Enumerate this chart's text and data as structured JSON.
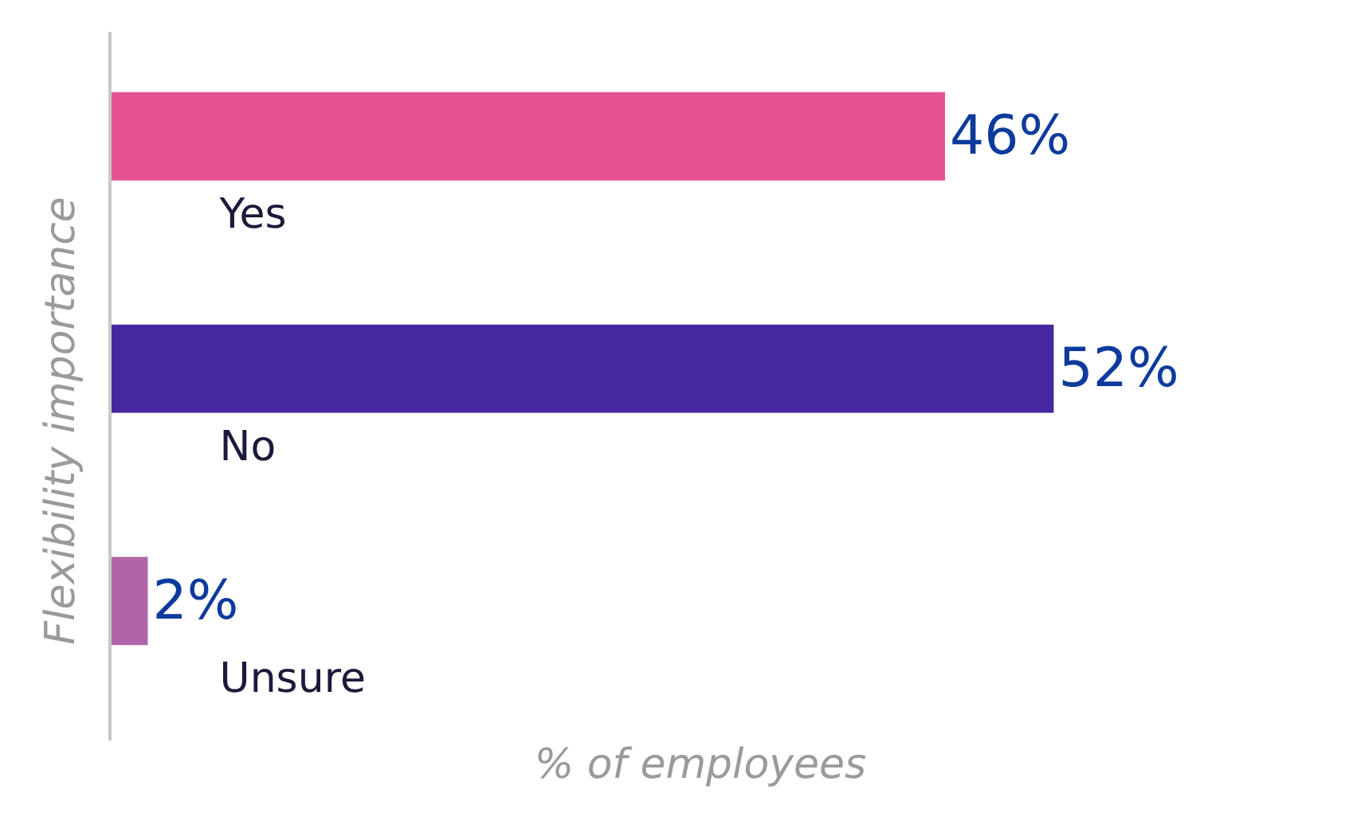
{
  "chart_data": {
    "type": "bar",
    "orientation": "horizontal",
    "xlabel": "% of employees",
    "ylabel": "Flexibility importance",
    "categories": [
      "Yes",
      "No",
      "Unsure"
    ],
    "values": [
      46,
      52,
      2
    ],
    "colors": [
      "#e4518f",
      "#4527a0",
      "#b065a8"
    ],
    "value_labels": [
      "46%",
      "52%",
      "2%"
    ],
    "tick_labels": "y",
    "legend": false
  }
}
